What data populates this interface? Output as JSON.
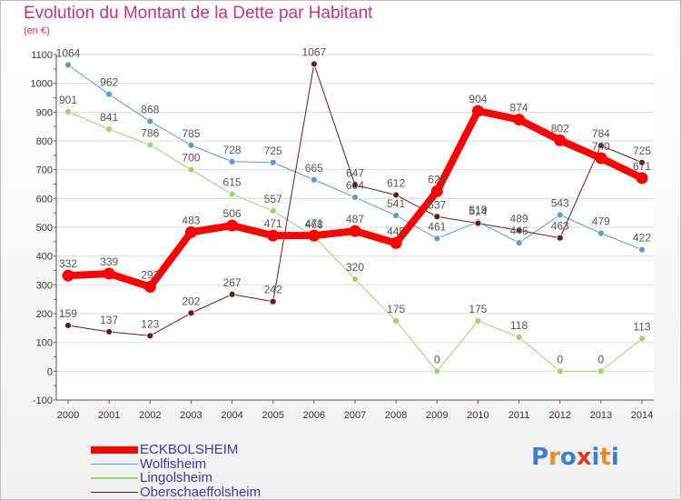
{
  "header": {
    "title": "Evolution du Montant de la Dette par Habitant",
    "subtitle": "(en €)"
  },
  "logo": {
    "text": "Proxiti",
    "colors": [
      "#3a7fd0",
      "#f08a24",
      "#3a7fd0",
      "#e0392b",
      "#3a7fd0",
      "#f08a24",
      "#3a7fd0"
    ]
  },
  "chart_data": {
    "type": "line",
    "title": "Evolution du Montant de la Dette par Habitant",
    "subtitle": "(en €)",
    "xlabel": "",
    "ylabel": "",
    "x": [
      2000,
      2001,
      2002,
      2003,
      2004,
      2005,
      2006,
      2007,
      2008,
      2009,
      2010,
      2011,
      2012,
      2013,
      2014
    ],
    "ylim": [
      -100,
      1100
    ],
    "yticks": [
      -100,
      0,
      100,
      200,
      300,
      400,
      500,
      600,
      700,
      800,
      900,
      1000,
      1100
    ],
    "grid": "horizontal",
    "legend_position": "bottom-left",
    "series": [
      {
        "name": "ECKBOLSHEIM",
        "color": "#ff0000",
        "width": 8,
        "values": [
          332,
          339,
          293,
          483,
          506,
          471,
          471,
          487,
          445,
          625,
          904,
          874,
          802,
          740,
          671
        ]
      },
      {
        "name": "Wolfisheim",
        "color": "#5b9bd5",
        "width": 1,
        "values": [
          1064,
          962,
          868,
          785,
          728,
          725,
          665,
          604,
          541,
          461,
          519,
          446,
          543,
          479,
          422
        ]
      },
      {
        "name": "Lingolsheim",
        "color": "#9bd56a",
        "width": 1,
        "values": [
          901,
          841,
          786,
          700,
          615,
          557,
          468,
          320,
          175,
          0,
          175,
          118,
          0,
          0,
          113
        ]
      },
      {
        "name": "Oberschaeffolsheim",
        "color": "#6b1a1a",
        "width": 1,
        "values": [
          159,
          137,
          123,
          202,
          267,
          242,
          1067,
          647,
          612,
          537,
          514,
          489,
          463,
          784,
          725
        ]
      }
    ]
  }
}
